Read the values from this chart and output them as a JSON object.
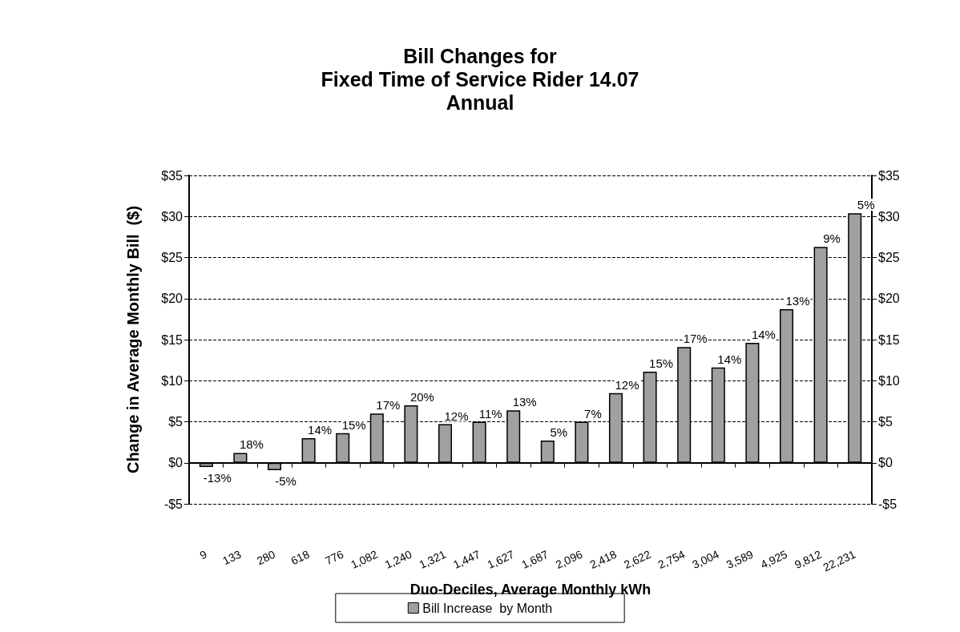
{
  "chart_data": {
    "type": "bar",
    "title": "Bill Changes for\nFixed Time of Service Rider 14.07\nAnnual",
    "xlabel": "Duo-Deciles, Average Monthly kWh",
    "ylabel": "Change in Average Monthly Bill  ($)",
    "categories": [
      "9",
      "133",
      "280",
      "618",
      "776",
      "1,082",
      "1,240",
      "1,321",
      "1,447",
      "1,627",
      "1,687",
      "2,096",
      "2,418",
      "2,622",
      "2,754",
      "3,004",
      "3,589",
      "4,925",
      "9,812",
      "22,231"
    ],
    "series": [
      {
        "name": "Bill Increase  by Month",
        "color": "#a0a0a0",
        "values": [
          -0.5,
          1.2,
          -0.9,
          3.0,
          3.6,
          6.0,
          7.0,
          4.7,
          5.0,
          6.4,
          2.7,
          5.0,
          8.5,
          11.1,
          14.1,
          11.6,
          14.6,
          18.7,
          26.3,
          30.4
        ]
      }
    ],
    "annotations": [
      {
        "text": "-13%",
        "x": "9",
        "y": -0.5
      },
      {
        "text": "18%",
        "x": "133",
        "y": 1.2
      },
      {
        "text": "-5%",
        "x": "280",
        "y": -0.9
      },
      {
        "text": "14%",
        "x": "618",
        "y": 3.0
      },
      {
        "text": "15%",
        "x": "776",
        "y": 3.6
      },
      {
        "text": "17%",
        "x": "1,082",
        "y": 6.0
      },
      {
        "text": "20%",
        "x": "1,240",
        "y": 7.0
      },
      {
        "text": "12%",
        "x": "1,321",
        "y": 4.7
      },
      {
        "text": "11%",
        "x": "1,447",
        "y": 5.0
      },
      {
        "text": "13%",
        "x": "1,627",
        "y": 6.4
      },
      {
        "text": "5%",
        "x": "1,687",
        "y": 2.7
      },
      {
        "text": "7%",
        "x": "2,096",
        "y": 5.0
      },
      {
        "text": "12%",
        "x": "2,418",
        "y": 8.5
      },
      {
        "text": "15%",
        "x": "2,622",
        "y": 11.1
      },
      {
        "text": "17%",
        "x": "2,754",
        "y": 14.1
      },
      {
        "text": "14%",
        "x": "3,004",
        "y": 11.6
      },
      {
        "text": "14%",
        "x": "3,589",
        "y": 14.6
      },
      {
        "text": "13%",
        "x": "4,925",
        "y": 18.7
      },
      {
        "text": "9%",
        "x": "9,812",
        "y": 26.3
      },
      {
        "text": "5%",
        "x": "22,231",
        "y": 30.4
      }
    ],
    "ylim": [
      -5,
      35
    ],
    "yticks": [
      {
        "value": -5,
        "label": "-$5"
      },
      {
        "value": 0,
        "label": "$0"
      },
      {
        "value": 5,
        "label": "$5"
      },
      {
        "value": 10,
        "label": "$10"
      },
      {
        "value": 15,
        "label": "$15"
      },
      {
        "value": 20,
        "label": "$20"
      },
      {
        "value": 25,
        "label": "$25"
      },
      {
        "value": 30,
        "label": "$30"
      },
      {
        "value": 35,
        "label": "$35"
      }
    ],
    "y2lim": [
      -5,
      35
    ],
    "y2ticks": [
      {
        "value": -5,
        "label": "-$5"
      },
      {
        "value": 0,
        "label": "$0"
      },
      {
        "value": 5,
        "label": "$5"
      },
      {
        "value": 10,
        "label": "$10"
      },
      {
        "value": 15,
        "label": "$15"
      },
      {
        "value": 20,
        "label": "$20"
      },
      {
        "value": 25,
        "label": "$25"
      },
      {
        "value": 30,
        "label": "$30"
      },
      {
        "value": 35,
        "label": "$35"
      }
    ],
    "grid": "y",
    "legend": "bottom"
  }
}
